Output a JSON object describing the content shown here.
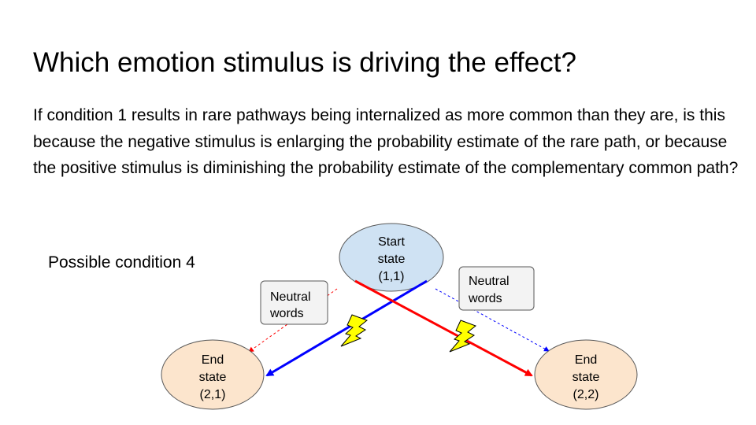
{
  "slide": {
    "title": "Which emotion stimulus is driving the effect?",
    "body": "If condition 1 results in rare pathways being internalized as more common than they are, is this because the negative stimulus is enlarging the probability estimate of the rare path, or because the positive stimulus is diminishing the probability estimate of the complementary common path?",
    "condition_label": "Possible condition 4"
  },
  "diagram": {
    "start_node": {
      "lines": [
        "Start",
        "state",
        "(1,1)"
      ],
      "fill": "#cfe2f3"
    },
    "end_node_left": {
      "lines": [
        "End",
        "state",
        "(2,1)"
      ],
      "fill": "#fce5cd"
    },
    "end_node_right": {
      "lines": [
        "End",
        "state",
        "(2,2)"
      ],
      "fill": "#fce5cd"
    },
    "label_left": {
      "lines": [
        "Neutral",
        "words"
      ]
    },
    "label_right": {
      "lines": [
        "Neutral",
        "words"
      ]
    },
    "colors": {
      "blue_arrow": "#0000ff",
      "red_arrow": "#ff0000",
      "lightning": "#ffff00",
      "label_fill": "#f3f3f3",
      "label_stroke": "#595959"
    },
    "icons": [
      "lightning-bolt-icon",
      "lightning-bolt-icon"
    ]
  }
}
